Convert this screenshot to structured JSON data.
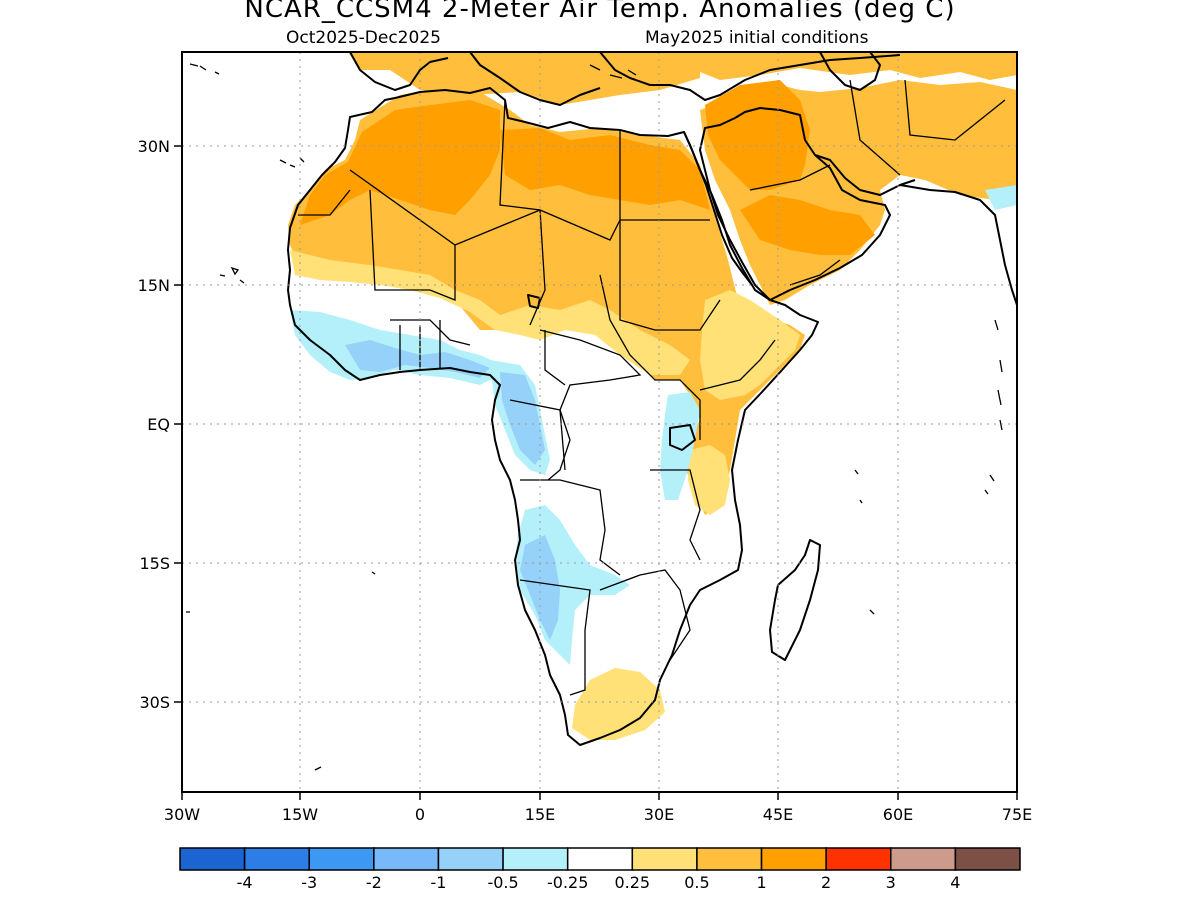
{
  "title": "NCAR_CCSM4 2-Meter Air Temp. Anomalies (deg C)",
  "subtitle_left": "Oct2025-Dec2025",
  "subtitle_right": "May2025 initial conditions",
  "map": {
    "lon_range": [
      -30,
      75
    ],
    "lat_range": [
      -40,
      40
    ],
    "x_ticks": [
      "30W",
      "15W",
      "0",
      "15E",
      "30E",
      "45E",
      "60E",
      "75E"
    ],
    "y_ticks": [
      "30N",
      "15N",
      "EQ",
      "15S",
      "30S"
    ],
    "grid": "dotted"
  },
  "colorbar": {
    "labels": [
      "-4",
      "-3",
      "-2",
      "-1",
      "-0.5",
      "-0.25",
      "0.25",
      "0.5",
      "1",
      "2",
      "3",
      "4"
    ],
    "colors": [
      "#1c64d2",
      "#2d7de6",
      "#3c98f2",
      "#78b9f9",
      "#96d1fa",
      "#b4f0fa",
      "#ffffff",
      "#ffe178",
      "#ffbe3c",
      "#ffa000",
      "#ff3200",
      "#cd9b8c",
      "#7d5046"
    ]
  },
  "anomaly_regions": [
    {
      "region": "Sahara / North Africa",
      "category": "0.5 to 1",
      "color": "#ffbe3c"
    },
    {
      "region": "Western Sahara / Mauritania",
      "category": "1 to 2",
      "color": "#ffa000"
    },
    {
      "region": "Algeria / Libya north",
      "category": "1 to 2",
      "color": "#ffa000"
    },
    {
      "region": "Arabian Peninsula north",
      "category": "1 to 2",
      "color": "#ffa000"
    },
    {
      "region": "Horn of Africa",
      "category": "0.25 to 0.5",
      "color": "#ffe178"
    },
    {
      "region": "South Africa",
      "category": "0.25 to 0.5",
      "color": "#ffe178"
    },
    {
      "region": "Gulf of Guinea coast",
      "category": "-0.5 to -0.25",
      "color": "#b4f0fa"
    },
    {
      "region": "Gabon / Congo coast",
      "category": "-1 to -0.5",
      "color": "#96d1fa"
    },
    {
      "region": "Angola / Namibia west",
      "category": "-1 to -0.5",
      "color": "#96d1fa"
    }
  ]
}
